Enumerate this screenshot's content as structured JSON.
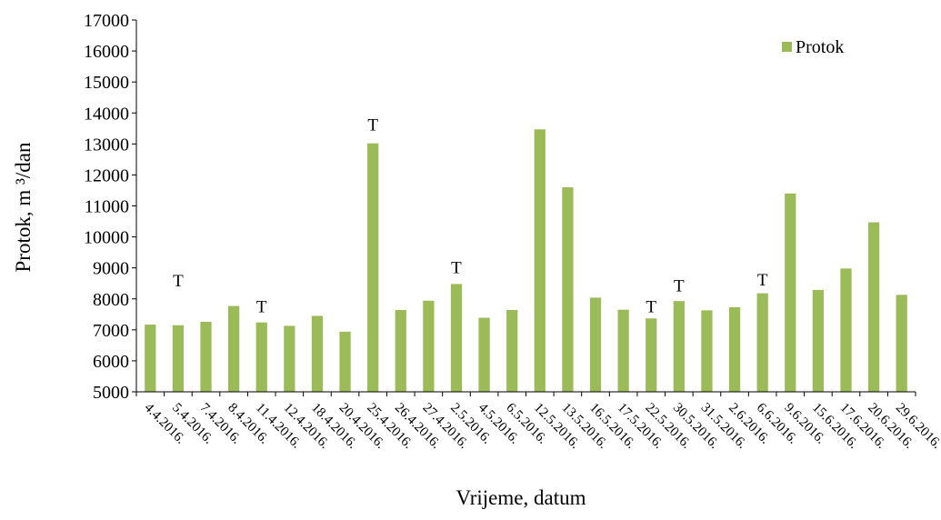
{
  "chart_data": {
    "type": "bar",
    "xlabel": "Vrijeme, datum",
    "ylabel": "Protok, m ³/dan",
    "ylim": [
      5000,
      17000
    ],
    "ytick_step": 1000,
    "grid": false,
    "legend_position": "top-right",
    "categories": [
      "4.4.2016.",
      "5.4.2016.",
      "7.4.2016.",
      "8.4.2016.",
      "11.4.2016.",
      "12.4.2016.",
      "18.4.2016.",
      "20.4.2016.",
      "25.4.2016.",
      "26.4.2016.",
      "27.4.2016.",
      "2.5.2016.",
      "4.5.2016.",
      "6.5.2016.",
      "12.5.2016.",
      "13.5.2016.",
      "16.5.2016.",
      "17.5.2016.",
      "22.5.2016.",
      "30.5.2016.",
      "31.5.2016.",
      "2.6.2016.",
      "6.6.2016.",
      "9.6.2016.",
      "15.6.2016.",
      "17.6.2016.",
      "20.6.2016.",
      "29.6.2016."
    ],
    "series": [
      {
        "name": "Protok",
        "color": "#9bbb59",
        "values": [
          7170,
          7150,
          7260,
          7770,
          7240,
          7130,
          7450,
          6940,
          13020,
          7640,
          7940,
          8480,
          7390,
          7640,
          13470,
          11600,
          8040,
          7650,
          7370,
          7930,
          7630,
          7730,
          8180,
          11400,
          8290,
          8980,
          10470,
          8130
        ]
      }
    ],
    "annotations": [
      {
        "label": "T",
        "category": "5.4.2016.",
        "y": 8400
      },
      {
        "label": "T",
        "category": "11.4.2016.",
        "y": 7560
      },
      {
        "label": "T",
        "category": "25.4.2016.",
        "y": 13440
      },
      {
        "label": "T",
        "category": "2.5.2016.",
        "y": 8830
      },
      {
        "label": "T",
        "category": "22.5.2016.",
        "y": 7560
      },
      {
        "label": "T",
        "category": "30.5.2016.",
        "y": 8240
      },
      {
        "label": "T",
        "category": "6.6.2016.",
        "y": 8440
      }
    ]
  }
}
